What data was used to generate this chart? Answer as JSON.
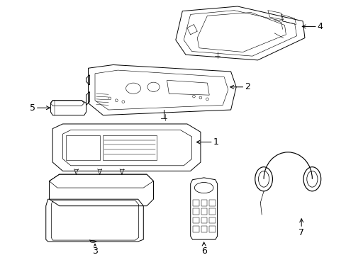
{
  "background_color": "#ffffff",
  "line_color": "#000000",
  "figsize": [
    4.89,
    3.6
  ],
  "dpi": 100,
  "labels": [
    "1",
    "2",
    "3",
    "4",
    "5",
    "6",
    "7"
  ],
  "callout_fontsize": 9
}
